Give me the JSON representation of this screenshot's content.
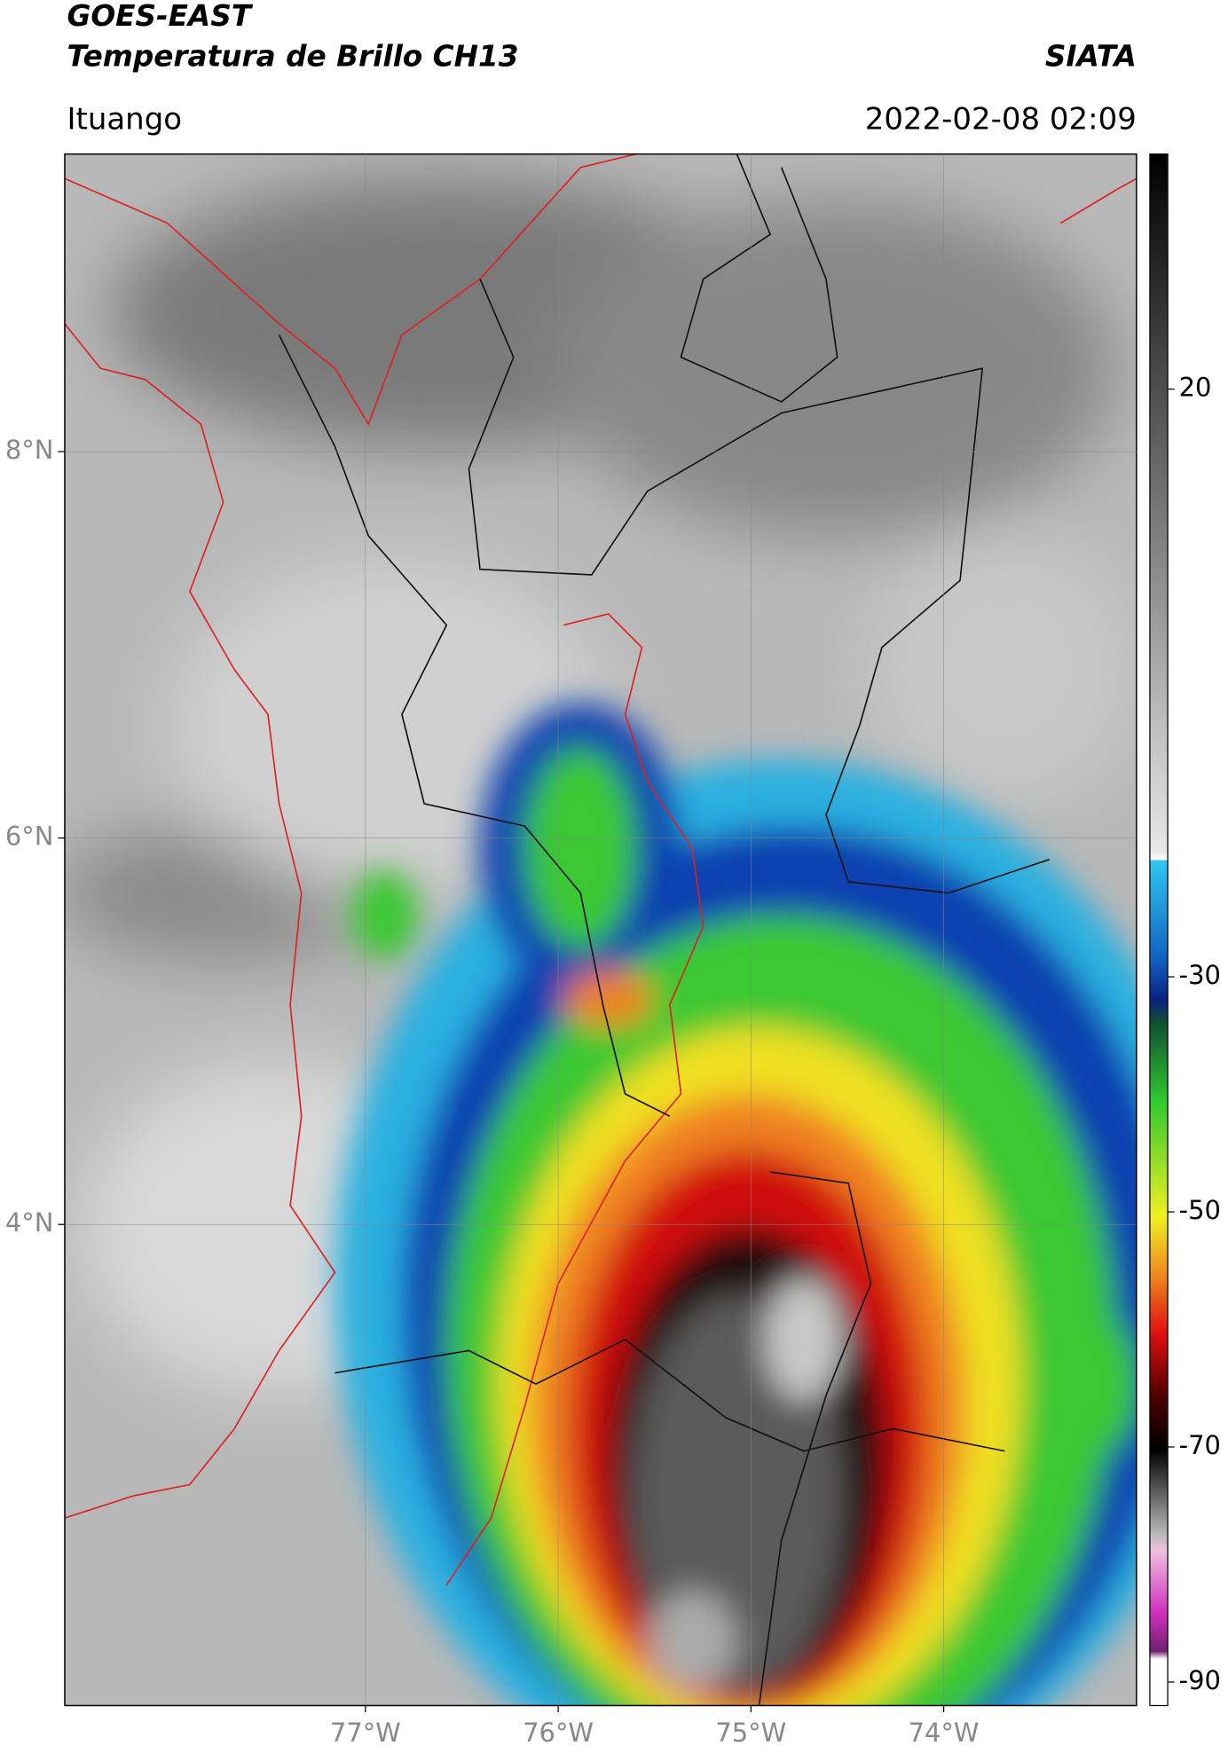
{
  "header": {
    "title": "GOES-EAST",
    "subtitle": "Temperatura de Brillo CH13",
    "source": "SIATA",
    "location": "Ituango",
    "datetime": "2022-02-08 02:09"
  },
  "map": {
    "lonlim": [
      -78.56,
      -73.0
    ],
    "latlim": [
      1.51,
      9.54
    ],
    "lon_ticks": [
      {
        "value": -77,
        "label": "77°W"
      },
      {
        "value": -76,
        "label": "76°W"
      },
      {
        "value": -75,
        "label": "75°W"
      },
      {
        "value": -74,
        "label": "74°W"
      }
    ],
    "lat_ticks": [
      {
        "value": 8,
        "label": "8°N"
      },
      {
        "value": 6,
        "label": "6°N"
      },
      {
        "value": 4,
        "label": "4°N"
      }
    ],
    "grid": true
  },
  "colorbar": {
    "range": [
      -92,
      40
    ],
    "ticks": [
      20,
      -30,
      -50,
      -70,
      -90
    ]
  }
}
